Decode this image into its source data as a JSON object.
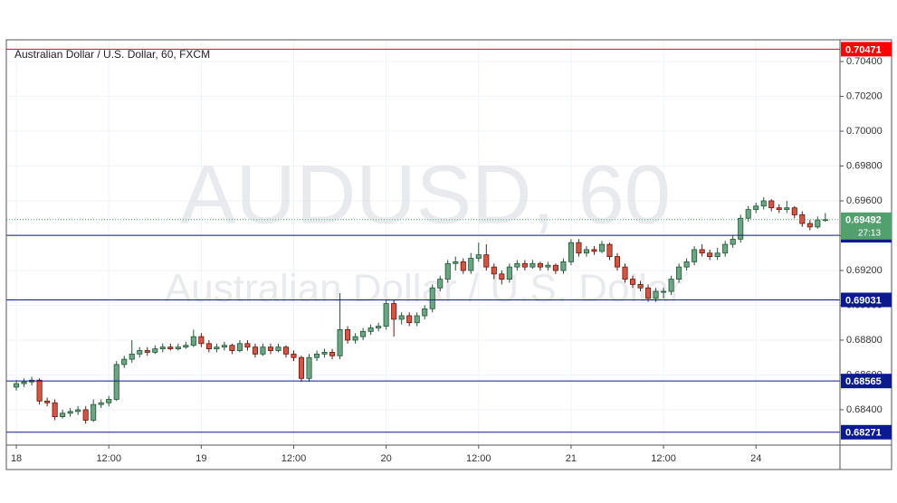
{
  "chart_data": {
    "type": "candlestick",
    "title": "Australian Dollar / U.S. Dollar, 60, FXCM",
    "watermark": "AUDUSD, 60",
    "watermark_subtitle": "Australian Dollar / U.S. Dollar",
    "up_color": "#6ba583",
    "down_color": "#d75442",
    "ylim": [
      0.68197,
      0.70525
    ],
    "yticks": [
      {
        "value": 0.684,
        "label": "0.68400"
      },
      {
        "value": 0.686,
        "label": "0.68600"
      },
      {
        "value": 0.688,
        "label": "0.68800"
      },
      {
        "value": 0.69,
        "label": "0.69000"
      },
      {
        "value": 0.692,
        "label": "0.69200"
      },
      {
        "value": 0.694,
        "label": "0.69400"
      },
      {
        "value": 0.696,
        "label": "0.69600"
      },
      {
        "value": 0.698,
        "label": "0.69800"
      },
      {
        "value": 0.7,
        "label": "0.70000"
      },
      {
        "value": 0.702,
        "label": "0.70200"
      },
      {
        "value": 0.704,
        "label": "0.70400"
      }
    ],
    "xlim": [
      -1.3,
      106.9
    ],
    "xticks": [
      {
        "value": 0,
        "label": "18"
      },
      {
        "value": 12,
        "label": "12:00"
      },
      {
        "value": 24,
        "label": "19"
      },
      {
        "value": 36,
        "label": "12:00"
      },
      {
        "value": 48,
        "label": "20"
      },
      {
        "value": 60,
        "label": "12:00"
      },
      {
        "value": 72,
        "label": "21"
      },
      {
        "value": 84,
        "label": "12:00"
      },
      {
        "value": 96,
        "label": "24"
      }
    ],
    "grid": true,
    "levels": [
      {
        "value": 0.70471,
        "color": "#ff0000"
      },
      {
        "value": 0.69402,
        "color": "#0b1a8c"
      },
      {
        "value": 0.69031,
        "color": "#0b1a8c"
      },
      {
        "value": 0.68565,
        "color": "#0b1a8c"
      },
      {
        "value": 0.68271,
        "color": "#0b1a8c"
      }
    ],
    "last_price": 0.69492,
    "last_price_color": "#53a06f",
    "countdown": "27:13",
    "ohlc": [
      [
        0.6853,
        0.6857,
        0.6851,
        0.6855
      ],
      [
        0.6855,
        0.6858,
        0.6853,
        0.6856
      ],
      [
        0.6856,
        0.6859,
        0.6854,
        0.6857
      ],
      [
        0.6857,
        0.6858,
        0.6843,
        0.6845
      ],
      [
        0.6845,
        0.6847,
        0.6842,
        0.6844
      ],
      [
        0.6844,
        0.6846,
        0.6834,
        0.6836
      ],
      [
        0.6836,
        0.684,
        0.6835,
        0.6838
      ],
      [
        0.6838,
        0.6841,
        0.6836,
        0.6839
      ],
      [
        0.6839,
        0.6842,
        0.6837,
        0.684
      ],
      [
        0.684,
        0.6842,
        0.6832,
        0.6834
      ],
      [
        0.6834,
        0.6846,
        0.6833,
        0.6843
      ],
      [
        0.6843,
        0.6846,
        0.6841,
        0.6844
      ],
      [
        0.6844,
        0.6848,
        0.6842,
        0.6846
      ],
      [
        0.6846,
        0.6868,
        0.6845,
        0.6866
      ],
      [
        0.6866,
        0.6871,
        0.6864,
        0.6869
      ],
      [
        0.6869,
        0.688,
        0.6867,
        0.6872
      ],
      [
        0.6872,
        0.6876,
        0.687,
        0.6874
      ],
      [
        0.6874,
        0.6876,
        0.6871,
        0.6873
      ],
      [
        0.6873,
        0.6877,
        0.6872,
        0.6875
      ],
      [
        0.6875,
        0.6878,
        0.6873,
        0.6876
      ],
      [
        0.6876,
        0.6878,
        0.6874,
        0.6875
      ],
      [
        0.6875,
        0.6878,
        0.6874,
        0.6876
      ],
      [
        0.6876,
        0.6879,
        0.6875,
        0.6877
      ],
      [
        0.6877,
        0.6886,
        0.6876,
        0.6882
      ],
      [
        0.6882,
        0.6884,
        0.6876,
        0.6878
      ],
      [
        0.6878,
        0.688,
        0.6873,
        0.6875
      ],
      [
        0.6875,
        0.6878,
        0.6873,
        0.6876
      ],
      [
        0.6876,
        0.6879,
        0.6874,
        0.6877
      ],
      [
        0.6877,
        0.6878,
        0.6872,
        0.6874
      ],
      [
        0.6874,
        0.688,
        0.6873,
        0.6878
      ],
      [
        0.6878,
        0.688,
        0.6874,
        0.6876
      ],
      [
        0.6876,
        0.6878,
        0.687,
        0.6872
      ],
      [
        0.6872,
        0.6878,
        0.6871,
        0.6876
      ],
      [
        0.6876,
        0.6878,
        0.6872,
        0.6874
      ],
      [
        0.6874,
        0.6878,
        0.6873,
        0.6876
      ],
      [
        0.6876,
        0.6877,
        0.687,
        0.6872
      ],
      [
        0.6872,
        0.6874,
        0.6868,
        0.687
      ],
      [
        0.687,
        0.6871,
        0.6856,
        0.6858
      ],
      [
        0.6858,
        0.6872,
        0.6856,
        0.687
      ],
      [
        0.687,
        0.6874,
        0.6868,
        0.6872
      ],
      [
        0.6872,
        0.6875,
        0.687,
        0.6873
      ],
      [
        0.6873,
        0.6875,
        0.6869,
        0.6871
      ],
      [
        0.6871,
        0.6907,
        0.6869,
        0.6886
      ],
      [
        0.6886,
        0.6888,
        0.6878,
        0.688
      ],
      [
        0.688,
        0.6884,
        0.6878,
        0.6882
      ],
      [
        0.6882,
        0.6887,
        0.688,
        0.6885
      ],
      [
        0.6885,
        0.6889,
        0.6883,
        0.6887
      ],
      [
        0.6887,
        0.689,
        0.6885,
        0.6888
      ],
      [
        0.6888,
        0.6903,
        0.6886,
        0.6901
      ],
      [
        0.6901,
        0.6903,
        0.6882,
        0.6892
      ],
      [
        0.6892,
        0.6896,
        0.6889,
        0.6894
      ],
      [
        0.6894,
        0.6896,
        0.6888,
        0.689
      ],
      [
        0.689,
        0.6896,
        0.6888,
        0.6894
      ],
      [
        0.6894,
        0.69,
        0.6892,
        0.6898
      ],
      [
        0.6898,
        0.6912,
        0.6896,
        0.691
      ],
      [
        0.691,
        0.6917,
        0.6908,
        0.6915
      ],
      [
        0.6915,
        0.6926,
        0.6913,
        0.6924
      ],
      [
        0.6924,
        0.6928,
        0.692,
        0.6925
      ],
      [
        0.6925,
        0.6927,
        0.6918,
        0.692
      ],
      [
        0.692,
        0.693,
        0.6918,
        0.6927
      ],
      [
        0.6927,
        0.6936,
        0.6925,
        0.6929
      ],
      [
        0.6929,
        0.6935,
        0.692,
        0.6922
      ],
      [
        0.6922,
        0.6924,
        0.6915,
        0.6918
      ],
      [
        0.6918,
        0.692,
        0.6912,
        0.6915
      ],
      [
        0.6915,
        0.6924,
        0.6913,
        0.6922
      ],
      [
        0.6922,
        0.6926,
        0.692,
        0.6924
      ],
      [
        0.6924,
        0.6926,
        0.692,
        0.6922
      ],
      [
        0.6922,
        0.6926,
        0.6921,
        0.6924
      ],
      [
        0.6924,
        0.6925,
        0.692,
        0.6922
      ],
      [
        0.6922,
        0.6925,
        0.692,
        0.6923
      ],
      [
        0.6923,
        0.6924,
        0.6918,
        0.692
      ],
      [
        0.692,
        0.6927,
        0.6918,
        0.6925
      ],
      [
        0.6925,
        0.6938,
        0.6923,
        0.6936
      ],
      [
        0.6936,
        0.6938,
        0.6928,
        0.693
      ],
      [
        0.693,
        0.6934,
        0.6928,
        0.6932
      ],
      [
        0.6932,
        0.6934,
        0.6929,
        0.6931
      ],
      [
        0.6931,
        0.6937,
        0.693,
        0.6935
      ],
      [
        0.6935,
        0.6936,
        0.6926,
        0.6928
      ],
      [
        0.6928,
        0.693,
        0.692,
        0.6922
      ],
      [
        0.6922,
        0.6924,
        0.6913,
        0.6915
      ],
      [
        0.6915,
        0.6917,
        0.691,
        0.6912
      ],
      [
        0.6912,
        0.6914,
        0.6908,
        0.691
      ],
      [
        0.691,
        0.6912,
        0.6902,
        0.6904
      ],
      [
        0.6904,
        0.691,
        0.6902,
        0.6908
      ],
      [
        0.6908,
        0.691,
        0.6904,
        0.6908
      ],
      [
        0.6908,
        0.6917,
        0.6906,
        0.6915
      ],
      [
        0.6915,
        0.6924,
        0.6913,
        0.6922
      ],
      [
        0.6922,
        0.6927,
        0.692,
        0.6925
      ],
      [
        0.6925,
        0.6934,
        0.6923,
        0.6932
      ],
      [
        0.6932,
        0.6935,
        0.6928,
        0.693
      ],
      [
        0.693,
        0.6932,
        0.6926,
        0.6928
      ],
      [
        0.6928,
        0.6933,
        0.6926,
        0.693
      ],
      [
        0.693,
        0.6937,
        0.6928,
        0.6935
      ],
      [
        0.6935,
        0.694,
        0.6933,
        0.6938
      ],
      [
        0.6938,
        0.6952,
        0.6936,
        0.695
      ],
      [
        0.695,
        0.6957,
        0.6948,
        0.6955
      ],
      [
        0.6955,
        0.6959,
        0.6953,
        0.6957
      ],
      [
        0.6957,
        0.6962,
        0.6955,
        0.696
      ],
      [
        0.696,
        0.6961,
        0.6954,
        0.6956
      ],
      [
        0.6956,
        0.6958,
        0.6953,
        0.6955
      ],
      [
        0.6955,
        0.696,
        0.6953,
        0.6956
      ],
      [
        0.6956,
        0.6957,
        0.695,
        0.6952
      ],
      [
        0.6952,
        0.6954,
        0.6945,
        0.6947
      ],
      [
        0.6947,
        0.6949,
        0.6943,
        0.6945
      ],
      [
        0.6945,
        0.6951,
        0.6944,
        0.6949
      ],
      [
        0.6949,
        0.6953,
        0.6948,
        0.69492
      ]
    ]
  }
}
